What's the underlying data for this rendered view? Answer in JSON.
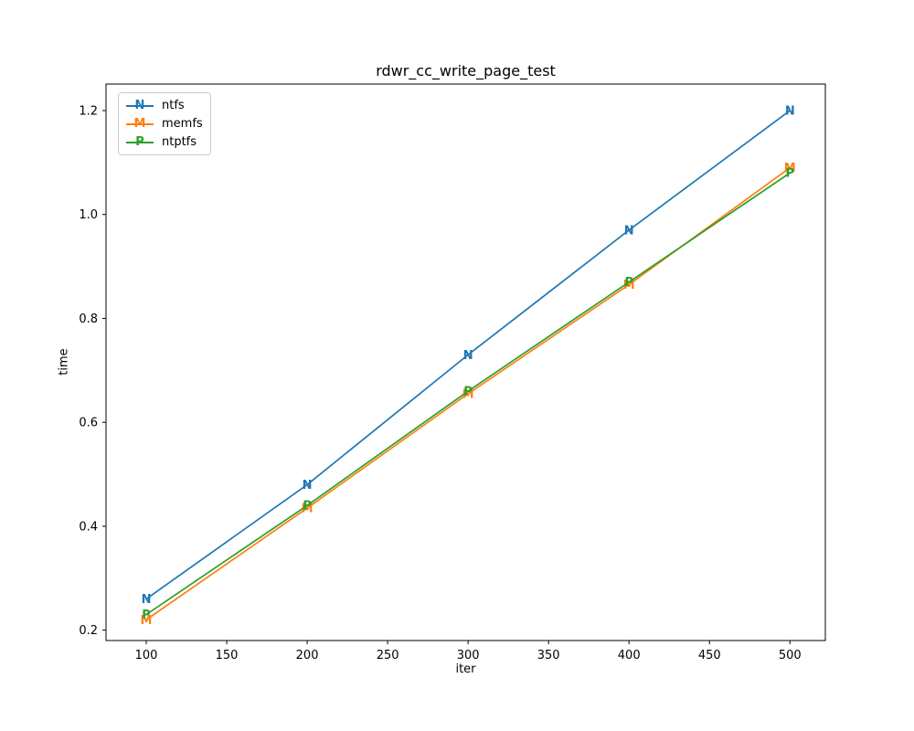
{
  "figure": {
    "background": "#ffffff"
  },
  "chart_data": {
    "type": "line",
    "title": "rdwr_cc_write_page_test",
    "xlabel": "iter",
    "ylabel": "time",
    "x": [
      100,
      200,
      300,
      400,
      500
    ],
    "series": [
      {
        "name": "ntfs",
        "color": "#1f77b4",
        "marker": "N",
        "values": [
          0.26,
          0.48,
          0.73,
          0.97,
          1.2
        ]
      },
      {
        "name": "memfs",
        "color": "#ff7f0e",
        "marker": "M",
        "values": [
          0.22,
          0.435,
          0.655,
          0.865,
          1.09
        ]
      },
      {
        "name": "ntptfs",
        "color": "#2ca02c",
        "marker": "P",
        "values": [
          0.23,
          0.44,
          0.66,
          0.87,
          1.08
        ]
      }
    ],
    "xticks": [
      100,
      150,
      200,
      250,
      300,
      350,
      400,
      450,
      500
    ],
    "ytick_labels": [
      "0.2",
      "0.4",
      "0.6",
      "0.8",
      "1.0",
      "1.2"
    ],
    "ytick_values": [
      0.2,
      0.4,
      0.6,
      0.8,
      1.0,
      1.2
    ],
    "xlim": [
      75,
      522
    ],
    "ylim": [
      0.18,
      1.251
    ],
    "grid": false,
    "legend_position": "upper left",
    "axis_color": "#000000"
  }
}
